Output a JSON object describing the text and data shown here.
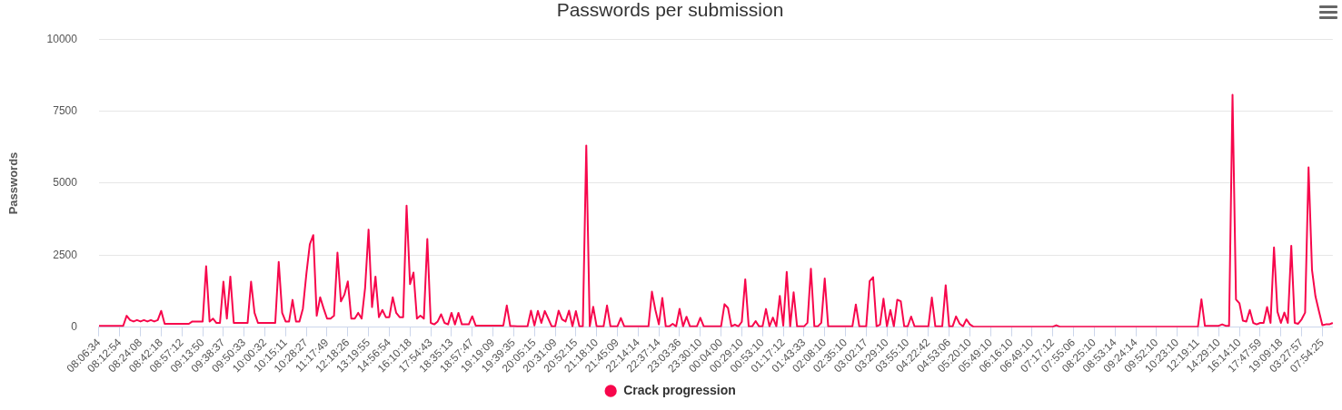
{
  "chart_data": {
    "type": "line",
    "title": "Passwords per submission",
    "ylabel": "Passwords",
    "categories": [
      "08:06:34",
      null,
      null,
      null,
      null,
      null,
      "08:12:54",
      null,
      null,
      null,
      null,
      null,
      "08:24:08",
      null,
      null,
      null,
      null,
      null,
      "08:42:18",
      null,
      null,
      null,
      null,
      null,
      "08:57:12",
      null,
      null,
      null,
      null,
      null,
      "09:13:50",
      null,
      null,
      null,
      null,
      null,
      "09:38:37",
      null,
      null,
      null,
      null,
      null,
      "09:50:33",
      null,
      null,
      null,
      null,
      null,
      "10:00:32",
      null,
      null,
      null,
      null,
      null,
      "10:15:11",
      null,
      null,
      null,
      null,
      null,
      "10:28:27",
      null,
      null,
      null,
      null,
      null,
      "11:17:49",
      null,
      null,
      null,
      null,
      null,
      "12:18:26",
      null,
      null,
      null,
      null,
      null,
      "13:19:55",
      null,
      null,
      null,
      null,
      null,
      "14:56:54",
      null,
      null,
      null,
      null,
      null,
      "16:10:18",
      null,
      null,
      null,
      null,
      null,
      "17:54:43",
      null,
      null,
      null,
      null,
      null,
      "18:35:13",
      null,
      null,
      null,
      null,
      null,
      "18:57:47",
      null,
      null,
      null,
      null,
      null,
      "19:19:09",
      null,
      null,
      null,
      null,
      null,
      "19:39:35",
      null,
      null,
      null,
      null,
      null,
      "20:05:15",
      null,
      null,
      null,
      null,
      null,
      "20:31:09",
      null,
      null,
      null,
      null,
      null,
      "20:52:15",
      null,
      null,
      null,
      null,
      null,
      "21:18:10",
      null,
      null,
      null,
      null,
      null,
      "21:45:09",
      null,
      null,
      null,
      null,
      null,
      "22:14:14",
      null,
      null,
      null,
      null,
      null,
      "22:37:14",
      null,
      null,
      null,
      null,
      null,
      "23:03:36",
      null,
      null,
      null,
      null,
      null,
      "23:30:10",
      null,
      null,
      null,
      null,
      null,
      "00:04:00",
      null,
      null,
      null,
      null,
      null,
      "00:29:10",
      null,
      null,
      null,
      null,
      null,
      "00:53:10",
      null,
      null,
      null,
      null,
      null,
      "01:17:12",
      null,
      null,
      null,
      null,
      null,
      "01:43:33",
      null,
      null,
      null,
      null,
      null,
      "02:08:10",
      null,
      null,
      null,
      null,
      null,
      "02:35:10",
      null,
      null,
      null,
      null,
      null,
      "03:02:17",
      null,
      null,
      null,
      null,
      null,
      "03:29:10",
      null,
      null,
      null,
      null,
      null,
      "03:55:10",
      null,
      null,
      null,
      null,
      null,
      "04:22:42",
      null,
      null,
      null,
      null,
      null,
      "04:53:06",
      null,
      null,
      null,
      null,
      null,
      "05:20:10",
      null,
      null,
      null,
      null,
      null,
      "05:49:10",
      null,
      null,
      null,
      null,
      null,
      "06:16:10",
      null,
      null,
      null,
      null,
      null,
      "06:49:10",
      null,
      null,
      null,
      null,
      null,
      "07:17:12",
      null,
      null,
      null,
      null,
      null,
      "07:55:06",
      null,
      null,
      null,
      null,
      null,
      "08:25:10",
      null,
      null,
      null,
      null,
      null,
      "08:53:14",
      null,
      null,
      null,
      null,
      null,
      "09:24:14",
      null,
      null,
      null,
      null,
      null,
      "09:52:10",
      null,
      null,
      null,
      null,
      null,
      "10:23:10",
      null,
      null,
      null,
      null,
      null,
      "12:19:11",
      null,
      null,
      null,
      null,
      null,
      "14:29:10",
      null,
      null,
      null,
      null,
      null,
      "16:14:10",
      null,
      null,
      null,
      null,
      null,
      "17:47:59",
      null,
      null,
      null,
      null,
      null,
      "19:09:18",
      null,
      null,
      null,
      null,
      null,
      "03:27:57",
      null,
      null,
      null,
      null,
      null,
      "07:54:25",
      null,
      null,
      null
    ],
    "series": [
      {
        "name": "Crack progression",
        "color": "#f7074c",
        "values": [
          50,
          50,
          50,
          50,
          50,
          50,
          50,
          50,
          400,
          250,
          200,
          250,
          200,
          250,
          200,
          250,
          200,
          250,
          570,
          120,
          120,
          120,
          120,
          120,
          120,
          120,
          120,
          200,
          200,
          200,
          200,
          2120,
          200,
          300,
          150,
          150,
          1580,
          300,
          1760,
          150,
          150,
          150,
          150,
          150,
          1580,
          500,
          150,
          150,
          150,
          150,
          150,
          150,
          2270,
          500,
          200,
          200,
          950,
          200,
          200,
          650,
          1850,
          2880,
          3200,
          400,
          1040,
          650,
          300,
          300,
          400,
          2590,
          900,
          1130,
          1590,
          300,
          300,
          500,
          300,
          1370,
          3390,
          700,
          1760,
          350,
          600,
          350,
          350,
          1040,
          500,
          350,
          350,
          4220,
          1500,
          1900,
          300,
          400,
          300,
          3060,
          150,
          100,
          200,
          450,
          150,
          100,
          500,
          100,
          500,
          100,
          100,
          100,
          380,
          60,
          60,
          60,
          60,
          60,
          60,
          60,
          60,
          60,
          755,
          40,
          40,
          30,
          30,
          30,
          30,
          575,
          60,
          565,
          150,
          565,
          300,
          30,
          30,
          575,
          275,
          200,
          575,
          30,
          560,
          30,
          30,
          6310,
          30,
          710,
          30,
          30,
          30,
          755,
          30,
          30,
          30,
          320,
          30,
          30,
          30,
          30,
          30,
          30,
          30,
          30,
          1235,
          600,
          100,
          1020,
          30,
          30,
          120,
          30,
          640,
          30,
          365,
          30,
          30,
          30,
          330,
          30,
          30,
          30,
          30,
          30,
          30,
          800,
          670,
          30,
          95,
          30,
          190,
          1665,
          30,
          30,
          215,
          30,
          30,
          635,
          30,
          335,
          30,
          1090,
          60,
          1920,
          30,
          1210,
          30,
          30,
          30,
          155,
          2030,
          30,
          30,
          155,
          1690,
          30,
          30,
          30,
          30,
          30,
          30,
          30,
          30,
          790,
          30,
          30,
          30,
          1600,
          1740,
          30,
          95,
          990,
          30,
          600,
          30,
          955,
          900,
          30,
          30,
          370,
          30,
          30,
          30,
          30,
          30,
          1030,
          30,
          30,
          30,
          1460,
          30,
          30,
          375,
          130,
          30,
          275,
          100,
          20,
          20,
          20,
          20,
          20,
          20,
          20,
          20,
          20,
          20,
          20,
          20,
          20,
          20,
          20,
          20,
          20,
          20,
          20,
          20,
          20,
          20,
          20,
          20,
          70,
          20,
          20,
          20,
          20,
          20,
          20,
          20,
          20,
          20,
          20,
          20,
          20,
          20,
          20,
          20,
          20,
          20,
          20,
          20,
          20,
          20,
          20,
          20,
          20,
          20,
          20,
          20,
          20,
          20,
          20,
          20,
          20,
          20,
          20,
          20,
          20,
          20,
          20,
          20,
          20,
          20,
          970,
          50,
          50,
          50,
          50,
          50,
          100,
          50,
          50,
          8070,
          965,
          830,
          230,
          200,
          600,
          150,
          100,
          150,
          150,
          700,
          150,
          2770,
          540,
          150,
          510,
          150,
          2830,
          150,
          120,
          275,
          510,
          5550,
          1990,
          1070,
          560,
          70,
          100,
          100,
          150
        ]
      }
    ],
    "ylim": [
      0,
      10000
    ],
    "yticks": [
      0,
      2500,
      5000,
      7500,
      10000
    ],
    "grid": "y",
    "legend": "bottom"
  }
}
